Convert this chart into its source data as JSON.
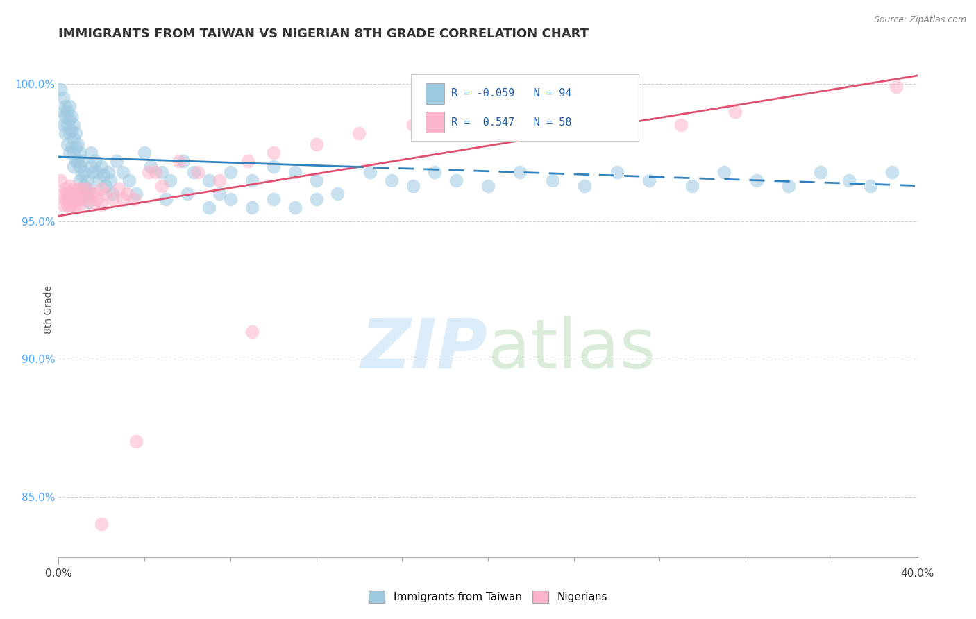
{
  "title": "IMMIGRANTS FROM TAIWAN VS NIGERIAN 8TH GRADE CORRELATION CHART",
  "source_text": "Source: ZipAtlas.com",
  "ylabel": "8th Grade",
  "xlim": [
    0.0,
    0.4
  ],
  "ylim": [
    0.828,
    1.008
  ],
  "ytick_labels": [
    "85.0%",
    "90.0%",
    "95.0%",
    "100.0%"
  ],
  "ytick_values": [
    0.85,
    0.9,
    0.95,
    1.0
  ],
  "legend_blue_label": "Immigrants from Taiwan",
  "legend_pink_label": "Nigerians",
  "R_blue": -0.059,
  "N_blue": 94,
  "R_pink": 0.547,
  "N_pink": 58,
  "blue_color": "#9ecae1",
  "pink_color": "#fbb4c9",
  "blue_line_color": "#3182bd",
  "pink_line_color": "#e05070",
  "background_color": "#ffffff",
  "watermark_color": "#d6eaf8",
  "taiwan_x": [
    0.001,
    0.002,
    0.002,
    0.002,
    0.003,
    0.003,
    0.003,
    0.004,
    0.004,
    0.004,
    0.005,
    0.005,
    0.005,
    0.005,
    0.006,
    0.006,
    0.006,
    0.007,
    0.007,
    0.007,
    0.007,
    0.008,
    0.008,
    0.008,
    0.009,
    0.009,
    0.01,
    0.01,
    0.01,
    0.011,
    0.011,
    0.012,
    0.012,
    0.013,
    0.013,
    0.014,
    0.014,
    0.015,
    0.015,
    0.016,
    0.017,
    0.018,
    0.019,
    0.02,
    0.021,
    0.022,
    0.023,
    0.024,
    0.025,
    0.027,
    0.03,
    0.033,
    0.036,
    0.04,
    0.043,
    0.048,
    0.052,
    0.058,
    0.063,
    0.07,
    0.075,
    0.08,
    0.09,
    0.1,
    0.11,
    0.12,
    0.13,
    0.145,
    0.155,
    0.165,
    0.175,
    0.185,
    0.2,
    0.215,
    0.23,
    0.245,
    0.26,
    0.275,
    0.295,
    0.31,
    0.325,
    0.34,
    0.355,
    0.368,
    0.378,
    0.388,
    0.05,
    0.06,
    0.07,
    0.08,
    0.09,
    0.1,
    0.11,
    0.12
  ],
  "taiwan_y": [
    0.998,
    0.995,
    0.99,
    0.985,
    0.992,
    0.988,
    0.982,
    0.99,
    0.985,
    0.978,
    0.992,
    0.987,
    0.982,
    0.975,
    0.988,
    0.983,
    0.977,
    0.985,
    0.98,
    0.975,
    0.97,
    0.982,
    0.977,
    0.972,
    0.978,
    0.972,
    0.975,
    0.97,
    0.965,
    0.972,
    0.967,
    0.968,
    0.963,
    0.965,
    0.96,
    0.962,
    0.957,
    0.975,
    0.97,
    0.968,
    0.972,
    0.968,
    0.965,
    0.97,
    0.967,
    0.963,
    0.968,
    0.965,
    0.96,
    0.972,
    0.968,
    0.965,
    0.96,
    0.975,
    0.97,
    0.968,
    0.965,
    0.972,
    0.968,
    0.965,
    0.96,
    0.968,
    0.965,
    0.97,
    0.968,
    0.965,
    0.96,
    0.968,
    0.965,
    0.963,
    0.968,
    0.965,
    0.963,
    0.968,
    0.965,
    0.963,
    0.968,
    0.965,
    0.963,
    0.968,
    0.965,
    0.963,
    0.968,
    0.965,
    0.963,
    0.968,
    0.958,
    0.96,
    0.955,
    0.958,
    0.955,
    0.958,
    0.955,
    0.958
  ],
  "nigerian_x": [
    0.001,
    0.002,
    0.002,
    0.003,
    0.003,
    0.004,
    0.004,
    0.005,
    0.005,
    0.006,
    0.006,
    0.007,
    0.007,
    0.008,
    0.008,
    0.009,
    0.009,
    0.01,
    0.01,
    0.011,
    0.012,
    0.013,
    0.014,
    0.015,
    0.016,
    0.017,
    0.018,
    0.02,
    0.022,
    0.025,
    0.028,
    0.032,
    0.036,
    0.042,
    0.048,
    0.056,
    0.065,
    0.075,
    0.088,
    0.1,
    0.005,
    0.01,
    0.02,
    0.03,
    0.12,
    0.14,
    0.165,
    0.19,
    0.215,
    0.24,
    0.265,
    0.29,
    0.315,
    0.02,
    0.035,
    0.045,
    0.09,
    0.39
  ],
  "nigerian_y": [
    0.965,
    0.96,
    0.956,
    0.962,
    0.958,
    0.96,
    0.956,
    0.963,
    0.958,
    0.96,
    0.956,
    0.962,
    0.958,
    0.96,
    0.956,
    0.962,
    0.958,
    0.96,
    0.956,
    0.962,
    0.958,
    0.962,
    0.958,
    0.96,
    0.956,
    0.96,
    0.958,
    0.962,
    0.96,
    0.958,
    0.962,
    0.96,
    0.87,
    0.968,
    0.963,
    0.972,
    0.968,
    0.965,
    0.972,
    0.975,
    0.955,
    0.958,
    0.956,
    0.958,
    0.978,
    0.982,
    0.985,
    0.988,
    0.99,
    0.985,
    0.988,
    0.985,
    0.99,
    0.84,
    0.958,
    0.968,
    0.91,
    0.999
  ]
}
